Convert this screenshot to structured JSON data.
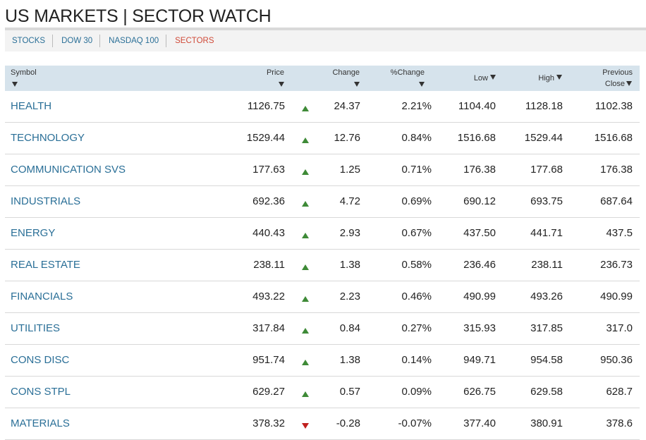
{
  "title": "US MARKETS | SECTOR WATCH",
  "nav": {
    "tabs": [
      "STOCKS",
      "DOW 30",
      "NASDAQ 100",
      "SECTORS"
    ],
    "active": "SECTORS"
  },
  "colors": {
    "link": "#2a6f97",
    "active_tab": "#d04a38",
    "header_bg": "#d6e3ec",
    "up": "#3e8a37",
    "down": "#c0201e"
  },
  "table": {
    "headers": {
      "symbol": "Symbol",
      "price": "Price",
      "change": "Change",
      "pct_change": "%Change",
      "low": "Low",
      "high": "High",
      "prev_close_1": "Previous",
      "prev_close_2": "Close"
    },
    "rows": [
      {
        "symbol": "HEALTH",
        "price": "1126.75",
        "direction": "up",
        "change": "24.37",
        "pct": "2.21%",
        "low": "1104.40",
        "high": "1128.18",
        "prev": "1102.38"
      },
      {
        "symbol": "TECHNOLOGY",
        "price": "1529.44",
        "direction": "up",
        "change": "12.76",
        "pct": "0.84%",
        "low": "1516.68",
        "high": "1529.44",
        "prev": "1516.68"
      },
      {
        "symbol": "COMMUNICATION SVS",
        "price": "177.63",
        "direction": "up",
        "change": "1.25",
        "pct": "0.71%",
        "low": "176.38",
        "high": "177.68",
        "prev": "176.38"
      },
      {
        "symbol": "INDUSTRIALS",
        "price": "692.36",
        "direction": "up",
        "change": "4.72",
        "pct": "0.69%",
        "low": "690.12",
        "high": "693.75",
        "prev": "687.64"
      },
      {
        "symbol": "ENERGY",
        "price": "440.43",
        "direction": "up",
        "change": "2.93",
        "pct": "0.67%",
        "low": "437.50",
        "high": "441.71",
        "prev": "437.5"
      },
      {
        "symbol": "REAL ESTATE",
        "price": "238.11",
        "direction": "up",
        "change": "1.38",
        "pct": "0.58%",
        "low": "236.46",
        "high": "238.11",
        "prev": "236.73"
      },
      {
        "symbol": "FINANCIALS",
        "price": "493.22",
        "direction": "up",
        "change": "2.23",
        "pct": "0.46%",
        "low": "490.99",
        "high": "493.26",
        "prev": "490.99"
      },
      {
        "symbol": "UTILITIES",
        "price": "317.84",
        "direction": "up",
        "change": "0.84",
        "pct": "0.27%",
        "low": "315.93",
        "high": "317.85",
        "prev": "317.0"
      },
      {
        "symbol": "CONS DISC",
        "price": "951.74",
        "direction": "up",
        "change": "1.38",
        "pct": "0.14%",
        "low": "949.71",
        "high": "954.58",
        "prev": "950.36"
      },
      {
        "symbol": "CONS STPL",
        "price": "629.27",
        "direction": "up",
        "change": "0.57",
        "pct": "0.09%",
        "low": "626.75",
        "high": "629.58",
        "prev": "628.7"
      },
      {
        "symbol": "MATERIALS",
        "price": "378.32",
        "direction": "down",
        "change": "-0.28",
        "pct": "-0.07%",
        "low": "377.40",
        "high": "380.91",
        "prev": "378.6"
      }
    ]
  }
}
